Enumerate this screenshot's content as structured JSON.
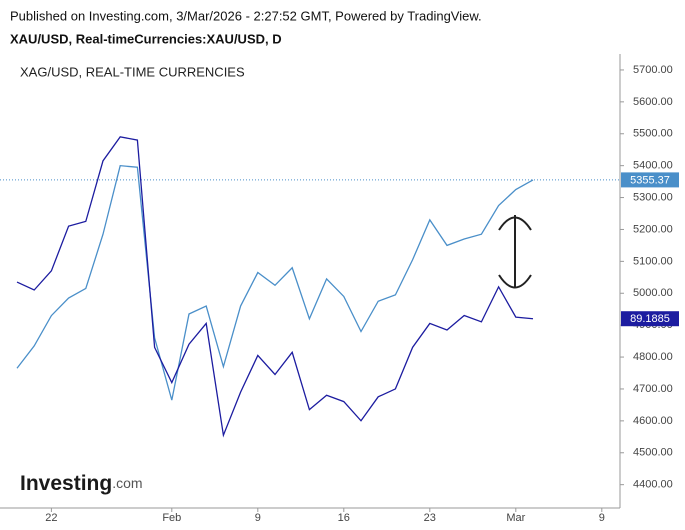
{
  "chart_data": {
    "type": "line",
    "subtitle": "Published on Investing.com, 3/Mar/2026 - 2:27:52 GMT, Powered by TradingView.",
    "title": "XAU/USD, Real-timeCurrencies:XAU/USD, D",
    "logo": [
      "Investing",
      ".com"
    ],
    "categories": [
      null,
      null,
      "22",
      null,
      null,
      null,
      null,
      null,
      null,
      "Feb",
      null,
      null,
      null,
      null,
      "9",
      null,
      null,
      null,
      null,
      "16",
      null,
      null,
      null,
      null,
      "23",
      null,
      null,
      null,
      null,
      "Mar",
      null,
      null,
      null,
      null,
      "9"
    ],
    "series": [
      {
        "color": "#4a8fc9",
        "values": [
          4765,
          4835,
          4930,
          4985,
          5015,
          5185,
          5400,
          5395,
          4860,
          4665,
          4935,
          4960,
          4770,
          4960,
          5065,
          5025,
          5080,
          4920,
          5045,
          4990,
          4880,
          4975,
          4995,
          5105,
          5230,
          5150,
          5170,
          5185,
          5275,
          5325,
          5355.37,
          null,
          null,
          null,
          null
        ]
      },
      {
        "name": "XAG/USD, REAL-TIME CURRENCIES",
        "color": "#1c1ca0",
        "axis": "y2",
        "values": [
          91.27,
          90.82,
          91.91,
          94.45,
          94.72,
          98.16,
          99.52,
          99.34,
          87.56,
          85.56,
          87.74,
          88.92,
          82.57,
          85.02,
          87.1,
          86.02,
          87.28,
          84.02,
          84.84,
          84.48,
          83.39,
          84.75,
          85.2,
          87.56,
          88.92,
          88.55,
          89.37,
          89.01,
          91.0,
          89.28,
          89.1885,
          null,
          null,
          null,
          null
        ]
      }
    ],
    "ylim": [
      4330,
      5750
    ],
    "yticks": [
      {
        "value": 4400,
        "label": "4400.00"
      },
      {
        "value": 4500,
        "label": "4500.00"
      },
      {
        "value": 4600,
        "label": "4600.00"
      },
      {
        "value": 4700,
        "label": "4700.00"
      },
      {
        "value": 4800,
        "label": "4800.00"
      },
      {
        "value": 4900,
        "label": "4900.00"
      },
      {
        "value": 5000,
        "label": "5000.00"
      },
      {
        "value": 5100,
        "label": "5100.00"
      },
      {
        "value": 5200,
        "label": "5200.00"
      },
      {
        "value": 5300,
        "label": "5300.00"
      },
      {
        "value": 5400,
        "label": "5400.00"
      },
      {
        "value": 5500,
        "label": "5500.00"
      },
      {
        "value": 5600,
        "label": "5600.00"
      },
      {
        "value": 5700,
        "label": "5700.00"
      }
    ],
    "y2lim": [
      78.49,
      104.23
    ],
    "grid": false
  }
}
